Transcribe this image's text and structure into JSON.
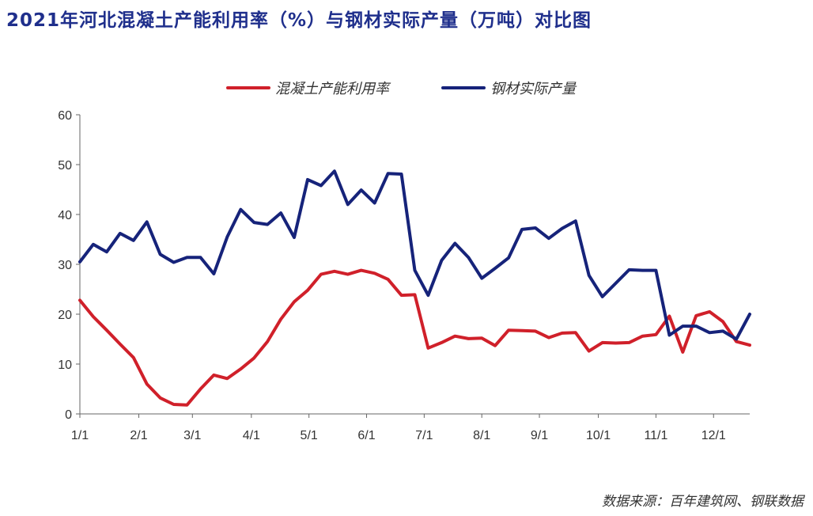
{
  "title": "2021年河北混凝土产能利用率（%）与钢材实际产量（万吨）对比图",
  "source": "数据来源：百年建筑网、钢联数据",
  "chart_data": {
    "type": "line",
    "ylim": [
      0,
      60
    ],
    "yticks": [
      0,
      10,
      20,
      30,
      40,
      50,
      60
    ],
    "x_tick_labels": [
      "1/1",
      "2/1",
      "3/1",
      "4/1",
      "5/1",
      "6/1",
      "7/1",
      "8/1",
      "9/1",
      "10/1",
      "11/1",
      "12/1"
    ],
    "x_tick_weeks": [
      0,
      4.4,
      8.4,
      12.8,
      17.1,
      21.4,
      25.7,
      30.0,
      34.3,
      38.7,
      43.0,
      47.3
    ],
    "legend": "top-center",
    "grid": false,
    "series": [
      {
        "name": "混凝土产能利用率",
        "color": "#d0202a",
        "values": [
          22.8,
          19.5,
          16.8,
          14.0,
          11.3,
          6.0,
          3.2,
          1.9,
          1.8,
          5.0,
          7.8,
          7.1,
          9.0,
          11.2,
          14.5,
          19.0,
          22.5,
          24.8,
          28.0,
          28.6,
          28.0,
          28.8,
          28.2,
          27.0,
          23.8,
          23.9,
          13.2,
          14.3,
          15.6,
          15.1,
          15.2,
          13.7,
          16.8,
          16.7,
          16.6,
          15.3,
          16.2,
          16.3,
          12.6,
          14.3,
          14.2,
          14.3,
          15.6,
          15.9,
          19.6,
          12.4,
          19.7,
          20.5,
          18.5,
          14.5,
          13.8
        ]
      },
      {
        "name": "钢材实际产量",
        "color": "#16237a",
        "values": [
          30.5,
          34.0,
          32.5,
          36.2,
          34.8,
          38.5,
          32.0,
          30.4,
          31.4,
          31.4,
          28.1,
          35.5,
          41.0,
          38.4,
          38.0,
          40.3,
          35.4,
          47.0,
          45.8,
          48.7,
          42.0,
          44.9,
          42.3,
          48.2,
          48.1,
          28.8,
          23.8,
          30.8,
          34.2,
          31.4,
          27.2,
          29.2,
          31.3,
          37.0,
          37.3,
          35.2,
          37.2,
          38.7,
          27.8,
          23.5,
          26.2,
          28.9,
          28.8,
          28.8,
          15.8,
          17.6,
          17.6,
          16.3,
          16.6,
          15.0,
          20.0
        ]
      }
    ]
  }
}
